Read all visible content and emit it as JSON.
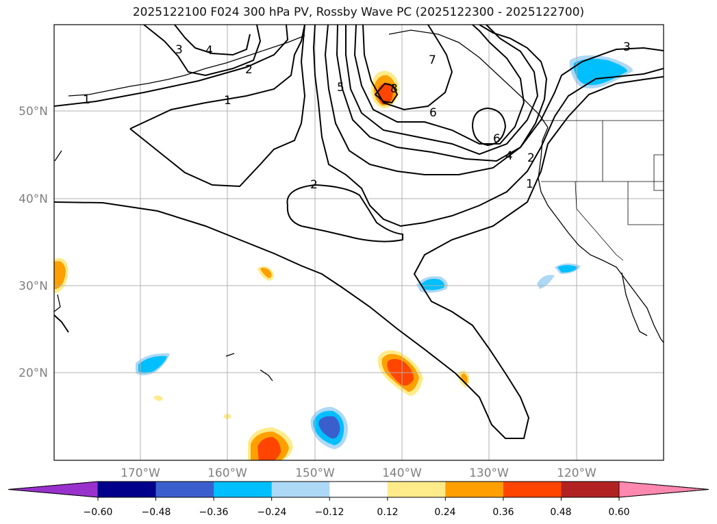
{
  "title": "2025122100 F024 300 hPa PV, Rossby Wave PC (2025122300 - 2025122700)",
  "map": {
    "region": "North Pacific / US West Coast",
    "lat_labels": [
      "50°N",
      "40°N",
      "30°N",
      "20°N"
    ],
    "lon_labels": [
      "170°W",
      "160°W",
      "150°W",
      "140°W",
      "130°W",
      "120°W"
    ],
    "gridlines": true,
    "contour_variable": "300 hPa PV",
    "contour_labels": [
      "1",
      "2",
      "3",
      "4",
      "5",
      "6",
      "7",
      "8"
    ],
    "fill_variable": "Rossby Wave PC"
  },
  "colorbar": {
    "ticks": [
      "−0.60",
      "−0.48",
      "−0.36",
      "−0.24",
      "−0.12",
      "0.12",
      "0.24",
      "0.36",
      "0.48",
      "0.60"
    ],
    "extend": "both",
    "colors": [
      "#9932CC",
      "#00008B",
      "#3A5FCD",
      "#00BFFF",
      "#ADD8F6",
      "#FFFFFF",
      "#FFEB8A",
      "#FFA000",
      "#FF4500",
      "#B22222",
      "#FF88B0"
    ]
  }
}
